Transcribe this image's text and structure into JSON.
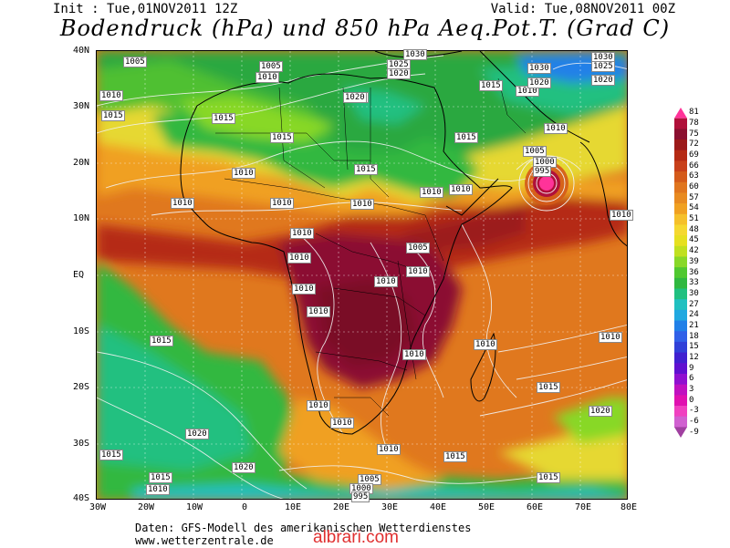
{
  "header": {
    "init": "Init : Tue,01NOV2011 12Z",
    "valid": "Valid: Tue,08NOV2011 00Z",
    "title": "Bodendruck (hPa) und 850 hPa Aeq.Pot.T. (Grad C)"
  },
  "lat_labels": [
    "40N",
    "30N",
    "20N",
    "10N",
    "EQ",
    "10S",
    "20S",
    "30S",
    "40S"
  ],
  "lon_labels": [
    "30W",
    "20W",
    "10W",
    "0",
    "10E",
    "20E",
    "30E",
    "40E",
    "50E",
    "60E",
    "70E",
    "80E"
  ],
  "colorbar": {
    "labels": [
      "81",
      "78",
      "75",
      "72",
      "69",
      "66",
      "63",
      "60",
      "57",
      "54",
      "51",
      "48",
      "45",
      "42",
      "39",
      "36",
      "33",
      "30",
      "27",
      "24",
      "21",
      "18",
      "15",
      "12",
      "9",
      "6",
      "3",
      "0",
      "-3",
      "-6",
      "-9"
    ],
    "colors": [
      "#ff3399",
      "#b0103a",
      "#8b1030",
      "#9c1a1a",
      "#b52a14",
      "#c8401a",
      "#d45a1a",
      "#e0751e",
      "#e88a20",
      "#f0a020",
      "#f5c02a",
      "#f5d830",
      "#e6e020",
      "#c0e020",
      "#88d828",
      "#50c830",
      "#30b840",
      "#20c080",
      "#20c0c0",
      "#20a8e0",
      "#2080e8",
      "#3060e8",
      "#3040d8",
      "#4020d0",
      "#6010d0",
      "#9010d0",
      "#c010c0",
      "#e010b0",
      "#f040c0",
      "#d060d0",
      "#a040a0"
    ]
  },
  "isobar_labels": [
    "1005",
    "1005",
    "1010",
    "1010",
    "1015",
    "1010",
    "1020",
    "1030",
    "1025",
    "1020",
    "1015",
    "1010",
    "1030",
    "1025",
    "1020",
    "1030",
    "1020",
    "1015",
    "1015",
    "1015",
    "1010",
    "1015",
    "1010",
    "1010",
    "1005",
    "1000",
    "995",
    "1010",
    "1010",
    "1010",
    "1010",
    "1010",
    "1010",
    "1010",
    "1005",
    "1010",
    "1010",
    "1010",
    "1010",
    "1010",
    "1010",
    "1015",
    "1010",
    "1010",
    "1015",
    "1020",
    "1010",
    "1020",
    "1010",
    "1015",
    "1015",
    "1015",
    "1010",
    "1005",
    "1000",
    "995",
    "1015",
    "1020"
  ],
  "footer": {
    "line1": "Daten: GFS-Modell des amerikanischen Wetterdienstes",
    "line2": "www.wetterzentrale.de"
  },
  "watermark": "albrari.com"
}
